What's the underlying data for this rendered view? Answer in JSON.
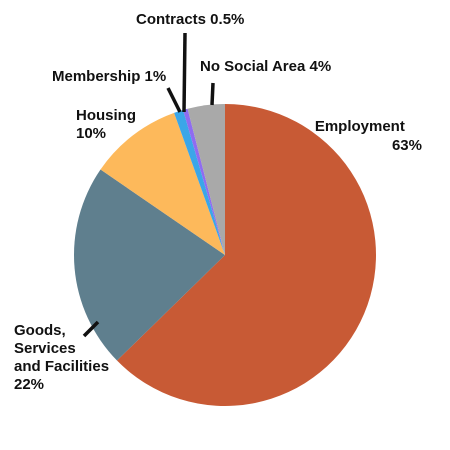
{
  "chart_data": {
    "type": "pie",
    "start_angle_deg": 0,
    "direction": "clockwise",
    "slices": [
      {
        "name": "Employment",
        "value": 63,
        "value_label": "63%",
        "color": "#c85a35"
      },
      {
        "name": "Goods, Services and Facilities",
        "value": 22,
        "value_label": "22%",
        "color": "#5f7f8e"
      },
      {
        "name": "Housing",
        "value": 10,
        "value_label": "10%",
        "color": "#fdb95b"
      },
      {
        "name": "Membership",
        "value": 1,
        "value_label": "1%",
        "color": "#3ba6e8"
      },
      {
        "name": "Contracts",
        "value": 0.5,
        "value_label": "0.5%",
        "color": "#8f6cf0"
      },
      {
        "name": "No Social Area",
        "value": 4,
        "value_label": "4%",
        "color": "#a9a9a9"
      }
    ],
    "labels": {
      "employment": [
        "Employment",
        "63%"
      ],
      "goods": [
        "Goods,",
        "Services",
        "and Facilities",
        "22%"
      ],
      "housing": [
        "Housing",
        "10%"
      ],
      "membership": [
        "Membership 1%"
      ],
      "contracts": [
        "Contracts 0.5%"
      ],
      "no_social": [
        "No Social Area 4%"
      ]
    }
  }
}
